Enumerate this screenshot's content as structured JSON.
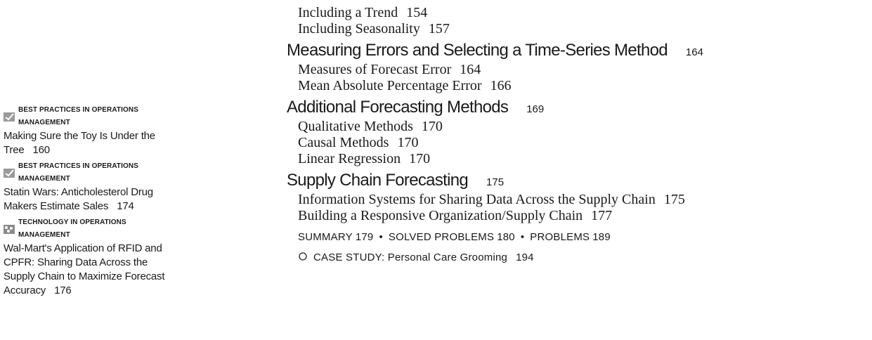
{
  "continued_items": [
    {
      "title": "Including a Trend",
      "page": "154"
    },
    {
      "title": "Including Seasonality",
      "page": "157"
    }
  ],
  "sections": [
    {
      "title": "Measuring Errors and Selecting a Time-Series Method",
      "page": "164",
      "items": [
        {
          "title": "Measures of Forecast Error",
          "page": "164"
        },
        {
          "title": "Mean Absolute Percentage Error",
          "page": "166"
        }
      ]
    },
    {
      "title": "Additional Forecasting Methods",
      "page": "169",
      "items": [
        {
          "title": "Qualitative Methods",
          "page": "170"
        },
        {
          "title": "Causal Methods",
          "page": "170"
        },
        {
          "title": "Linear Regression",
          "page": "170"
        }
      ]
    },
    {
      "title": "Supply Chain Forecasting",
      "page": "175",
      "items": [
        {
          "title": "Information Systems for Sharing Data Across the Supply Chain",
          "page": "175"
        },
        {
          "title": "Building a Responsive Organization/Supply Chain",
          "page": "177"
        }
      ]
    }
  ],
  "summary": {
    "separator": "•",
    "parts": [
      {
        "label": "SUMMARY",
        "page": "179"
      },
      {
        "label": "SOLVED PROBLEMS",
        "page": "180"
      },
      {
        "label": "PROBLEMS",
        "page": "189"
      }
    ]
  },
  "case_study": {
    "title": "CASE STUDY: Personal Care Grooming",
    "page": "194"
  },
  "sidebar": [
    {
      "label": "BEST PRACTICES IN OPERATIONS MANAGEMENT",
      "text": "Making Sure the Toy Is Under the Tree",
      "page": "160"
    },
    {
      "label": "BEST PRACTICES IN OPERATIONS MANAGEMENT",
      "text": "Statin Wars: Anticholesterol Drug Makers Estimate Sales",
      "page": "174"
    },
    {
      "label": "TECHNOLOGY IN OPERATIONS MANAGEMENT",
      "text": "Wal-Mart's Application of RFID and CPFR: Sharing Data Across the Supply Chain to Maximize Forecast Accuracy",
      "page": "176"
    }
  ]
}
